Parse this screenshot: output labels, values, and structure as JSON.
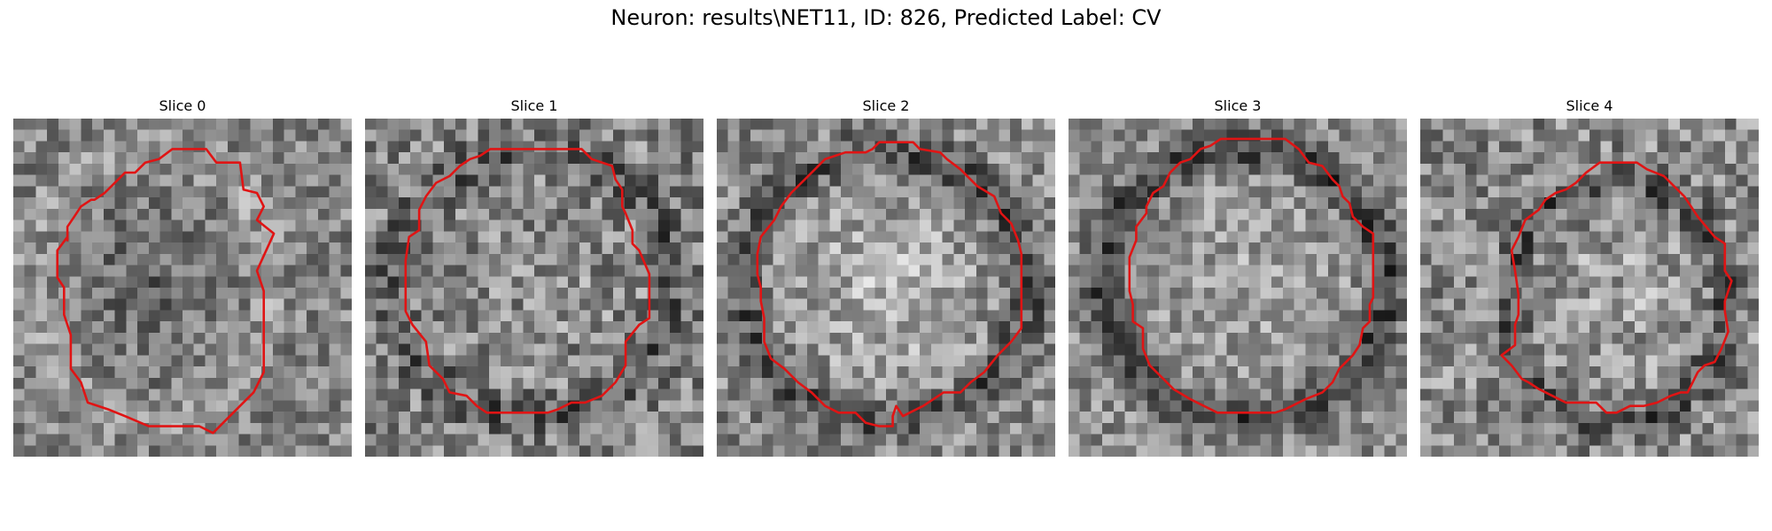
{
  "figure": {
    "title": "Neuron: results\\NET11, ID: 826, Predicted Label: CV"
  },
  "contour_color": "#e01414",
  "slices": [
    {
      "title": "Slice 0",
      "center": [
        0.4,
        0.49
      ],
      "radius": [
        0.36,
        0.4
      ],
      "intensity": {
        "base": 0.52,
        "ring": 0.08,
        "inner": -0.12,
        "noise": 0.42,
        "seed": 11
      },
      "contour": [
        [
          0.47,
          0.09
        ],
        [
          0.57,
          0.09
        ],
        [
          0.6,
          0.13
        ],
        [
          0.67,
          0.13
        ],
        [
          0.68,
          0.21
        ],
        [
          0.72,
          0.22
        ],
        [
          0.74,
          0.26
        ],
        [
          0.72,
          0.3
        ],
        [
          0.77,
          0.34
        ],
        [
          0.72,
          0.45
        ],
        [
          0.74,
          0.51
        ],
        [
          0.74,
          0.75
        ],
        [
          0.71,
          0.81
        ],
        [
          0.67,
          0.85
        ],
        [
          0.62,
          0.9
        ],
        [
          0.59,
          0.93
        ],
        [
          0.55,
          0.91
        ],
        [
          0.4,
          0.91
        ],
        [
          0.33,
          0.88
        ],
        [
          0.28,
          0.86
        ],
        [
          0.22,
          0.84
        ],
        [
          0.2,
          0.78
        ],
        [
          0.17,
          0.74
        ],
        [
          0.17,
          0.64
        ],
        [
          0.15,
          0.58
        ],
        [
          0.15,
          0.5
        ],
        [
          0.13,
          0.47
        ],
        [
          0.13,
          0.39
        ],
        [
          0.16,
          0.35
        ],
        [
          0.16,
          0.36
        ],
        [
          0.16,
          0.32
        ],
        [
          0.18,
          0.29
        ],
        [
          0.2,
          0.26
        ],
        [
          0.23,
          0.24
        ],
        [
          0.24,
          0.24
        ],
        [
          0.27,
          0.22
        ],
        [
          0.3,
          0.19
        ],
        [
          0.33,
          0.16
        ],
        [
          0.36,
          0.16
        ],
        [
          0.39,
          0.13
        ],
        [
          0.43,
          0.12
        ]
      ]
    },
    {
      "title": "Slice 1",
      "center": [
        0.5,
        0.49
      ],
      "radius": [
        0.42,
        0.39
      ],
      "intensity": {
        "base": 0.52,
        "ring": -0.16,
        "inner": 0.05,
        "noise": 0.5,
        "seed": 23
      },
      "contour": [
        [
          0.37,
          0.09
        ],
        [
          0.64,
          0.09
        ],
        [
          0.67,
          0.12
        ],
        [
          0.73,
          0.14
        ],
        [
          0.74,
          0.18
        ],
        [
          0.76,
          0.21
        ],
        [
          0.76,
          0.26
        ],
        [
          0.77,
          0.28
        ],
        [
          0.79,
          0.33
        ],
        [
          0.79,
          0.37
        ],
        [
          0.81,
          0.39
        ],
        [
          0.84,
          0.46
        ],
        [
          0.84,
          0.59
        ],
        [
          0.81,
          0.61
        ],
        [
          0.77,
          0.66
        ],
        [
          0.77,
          0.73
        ],
        [
          0.74,
          0.78
        ],
        [
          0.7,
          0.82
        ],
        [
          0.65,
          0.84
        ],
        [
          0.61,
          0.84
        ],
        [
          0.57,
          0.86
        ],
        [
          0.54,
          0.87
        ],
        [
          0.36,
          0.87
        ],
        [
          0.33,
          0.85
        ],
        [
          0.3,
          0.82
        ],
        [
          0.25,
          0.81
        ],
        [
          0.23,
          0.77
        ],
        [
          0.19,
          0.73
        ],
        [
          0.18,
          0.66
        ],
        [
          0.14,
          0.61
        ],
        [
          0.12,
          0.57
        ],
        [
          0.12,
          0.42
        ],
        [
          0.13,
          0.35
        ],
        [
          0.16,
          0.33
        ],
        [
          0.16,
          0.27
        ],
        [
          0.18,
          0.23
        ],
        [
          0.21,
          0.19
        ],
        [
          0.25,
          0.17
        ],
        [
          0.28,
          0.14
        ],
        [
          0.31,
          0.12
        ],
        [
          0.34,
          0.11
        ]
      ]
    },
    {
      "title": "Slice 2",
      "center": [
        0.5,
        0.5
      ],
      "radius": [
        0.42,
        0.4
      ],
      "intensity": {
        "base": 0.54,
        "ring": -0.22,
        "inner": 0.18,
        "noise": 0.46,
        "seed": 37
      },
      "contour": [
        [
          0.48,
          0.07
        ],
        [
          0.58,
          0.07
        ],
        [
          0.6,
          0.09
        ],
        [
          0.66,
          0.1
        ],
        [
          0.68,
          0.12
        ],
        [
          0.72,
          0.15
        ],
        [
          0.75,
          0.18
        ],
        [
          0.77,
          0.2
        ],
        [
          0.82,
          0.23
        ],
        [
          0.84,
          0.28
        ],
        [
          0.87,
          0.31
        ],
        [
          0.89,
          0.36
        ],
        [
          0.9,
          0.4
        ],
        [
          0.9,
          0.62
        ],
        [
          0.87,
          0.66
        ],
        [
          0.83,
          0.7
        ],
        [
          0.79,
          0.75
        ],
        [
          0.75,
          0.78
        ],
        [
          0.72,
          0.81
        ],
        [
          0.67,
          0.81
        ],
        [
          0.61,
          0.85
        ],
        [
          0.57,
          0.87
        ],
        [
          0.55,
          0.88
        ],
        [
          0.53,
          0.85
        ],
        [
          0.52,
          0.88
        ],
        [
          0.52,
          0.91
        ],
        [
          0.48,
          0.91
        ],
        [
          0.44,
          0.9
        ],
        [
          0.41,
          0.87
        ],
        [
          0.36,
          0.87
        ],
        [
          0.32,
          0.85
        ],
        [
          0.28,
          0.81
        ],
        [
          0.24,
          0.78
        ],
        [
          0.2,
          0.74
        ],
        [
          0.16,
          0.71
        ],
        [
          0.14,
          0.66
        ],
        [
          0.14,
          0.59
        ],
        [
          0.13,
          0.54
        ],
        [
          0.13,
          0.5
        ],
        [
          0.12,
          0.46
        ],
        [
          0.12,
          0.4
        ],
        [
          0.13,
          0.35
        ],
        [
          0.17,
          0.3
        ],
        [
          0.19,
          0.26
        ],
        [
          0.22,
          0.22
        ],
        [
          0.26,
          0.18
        ],
        [
          0.29,
          0.15
        ],
        [
          0.32,
          0.12
        ],
        [
          0.38,
          0.1
        ],
        [
          0.44,
          0.1
        ],
        [
          0.46,
          0.09
        ]
      ]
    },
    {
      "title": "Slice 3",
      "center": [
        0.52,
        0.49
      ],
      "radius": [
        0.42,
        0.4
      ],
      "intensity": {
        "base": 0.56,
        "ring": -0.3,
        "inner": 0.08,
        "noise": 0.42,
        "seed": 53
      },
      "contour": [
        [
          0.45,
          0.06
        ],
        [
          0.64,
          0.06
        ],
        [
          0.68,
          0.09
        ],
        [
          0.71,
          0.13
        ],
        [
          0.75,
          0.14
        ],
        [
          0.78,
          0.18
        ],
        [
          0.8,
          0.2
        ],
        [
          0.81,
          0.23
        ],
        [
          0.83,
          0.25
        ],
        [
          0.84,
          0.29
        ],
        [
          0.87,
          0.32
        ],
        [
          0.9,
          0.34
        ],
        [
          0.9,
          0.53
        ],
        [
          0.89,
          0.55
        ],
        [
          0.89,
          0.6
        ],
        [
          0.87,
          0.62
        ],
        [
          0.86,
          0.67
        ],
        [
          0.84,
          0.7
        ],
        [
          0.8,
          0.74
        ],
        [
          0.78,
          0.78
        ],
        [
          0.75,
          0.81
        ],
        [
          0.7,
          0.83
        ],
        [
          0.64,
          0.86
        ],
        [
          0.61,
          0.87
        ],
        [
          0.44,
          0.87
        ],
        [
          0.4,
          0.85
        ],
        [
          0.36,
          0.83
        ],
        [
          0.31,
          0.8
        ],
        [
          0.28,
          0.77
        ],
        [
          0.24,
          0.73
        ],
        [
          0.22,
          0.68
        ],
        [
          0.22,
          0.62
        ],
        [
          0.19,
          0.6
        ],
        [
          0.19,
          0.55
        ],
        [
          0.18,
          0.51
        ],
        [
          0.18,
          0.41
        ],
        [
          0.2,
          0.36
        ],
        [
          0.2,
          0.32
        ],
        [
          0.23,
          0.28
        ],
        [
          0.23,
          0.26
        ],
        [
          0.25,
          0.22
        ],
        [
          0.28,
          0.2
        ],
        [
          0.3,
          0.16
        ],
        [
          0.33,
          0.13
        ],
        [
          0.36,
          0.12
        ],
        [
          0.39,
          0.09
        ],
        [
          0.42,
          0.08
        ]
      ]
    },
    {
      "title": "Slice 4",
      "center": [
        0.58,
        0.54
      ],
      "radius": [
        0.32,
        0.36
      ],
      "intensity": {
        "base": 0.54,
        "ring": -0.2,
        "inner": 0.1,
        "noise": 0.5,
        "seed": 71
      },
      "contour": [
        [
          0.53,
          0.13
        ],
        [
          0.64,
          0.13
        ],
        [
          0.67,
          0.15
        ],
        [
          0.72,
          0.17
        ],
        [
          0.75,
          0.2
        ],
        [
          0.78,
          0.23
        ],
        [
          0.8,
          0.26
        ],
        [
          0.82,
          0.29
        ],
        [
          0.87,
          0.35
        ],
        [
          0.9,
          0.37
        ],
        [
          0.9,
          0.45
        ],
        [
          0.92,
          0.48
        ],
        [
          0.9,
          0.54
        ],
        [
          0.9,
          0.57
        ],
        [
          0.91,
          0.63
        ],
        [
          0.89,
          0.68
        ],
        [
          0.87,
          0.72
        ],
        [
          0.84,
          0.73
        ],
        [
          0.82,
          0.75
        ],
        [
          0.8,
          0.79
        ],
        [
          0.79,
          0.81
        ],
        [
          0.77,
          0.81
        ],
        [
          0.74,
          0.82
        ],
        [
          0.7,
          0.84
        ],
        [
          0.66,
          0.85
        ],
        [
          0.62,
          0.85
        ],
        [
          0.58,
          0.87
        ],
        [
          0.55,
          0.87
        ],
        [
          0.53,
          0.85
        ],
        [
          0.52,
          0.84
        ],
        [
          0.47,
          0.84
        ],
        [
          0.43,
          0.84
        ],
        [
          0.39,
          0.82
        ],
        [
          0.35,
          0.8
        ],
        [
          0.32,
          0.78
        ],
        [
          0.3,
          0.77
        ],
        [
          0.27,
          0.73
        ],
        [
          0.24,
          0.7
        ],
        [
          0.28,
          0.67
        ],
        [
          0.28,
          0.61
        ],
        [
          0.29,
          0.58
        ],
        [
          0.29,
          0.52
        ],
        [
          0.28,
          0.45
        ],
        [
          0.27,
          0.39
        ],
        [
          0.29,
          0.35
        ],
        [
          0.31,
          0.3
        ],
        [
          0.35,
          0.27
        ],
        [
          0.37,
          0.24
        ],
        [
          0.4,
          0.22
        ],
        [
          0.43,
          0.21
        ],
        [
          0.46,
          0.19
        ],
        [
          0.49,
          0.16
        ]
      ]
    }
  ]
}
